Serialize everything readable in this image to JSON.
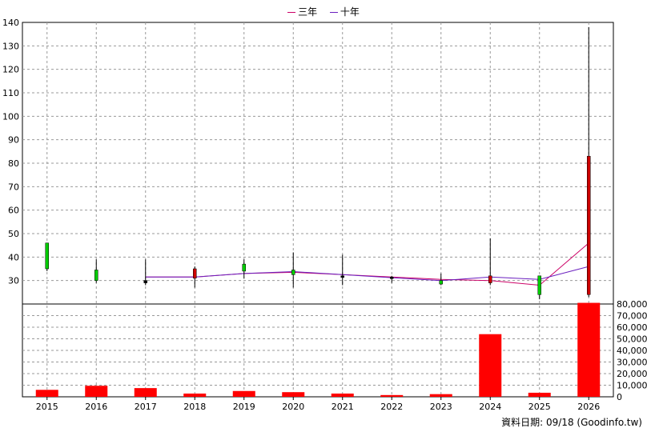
{
  "legend": {
    "items": [
      {
        "label": "三年",
        "color": "#cc0066"
      },
      {
        "label": "十年",
        "color": "#6a1fbf"
      }
    ]
  },
  "footer": {
    "label": "資料日期: 09/18  (Goodinfo.tw)"
  },
  "chart_data": {
    "type": "candlestick+bar",
    "categories": [
      "2015",
      "2016",
      "2017",
      "2018",
      "2019",
      "2020",
      "2021",
      "2022",
      "2023",
      "2024",
      "2025",
      "2026"
    ],
    "price_axis": {
      "ylim": [
        20,
        140
      ],
      "ticks": [
        30,
        40,
        50,
        60,
        70,
        80,
        90,
        100,
        110,
        120,
        130,
        140
      ]
    },
    "volume_axis": {
      "ylim": [
        0,
        80000
      ],
      "ticks": [
        0,
        10000,
        20000,
        30000,
        40000,
        50000,
        60000,
        70000,
        80000
      ],
      "tick_labels": [
        "0",
        "10,000",
        "20,000",
        "30,000",
        "40,000",
        "50,000",
        "60,000",
        "70,000",
        "80,000"
      ]
    },
    "candles": [
      {
        "open": 46,
        "close": 35,
        "high": 46,
        "low": 34,
        "color": "#00cc00"
      },
      {
        "open": 34.5,
        "close": 30,
        "high": 39,
        "low": 29,
        "color": "#00cc00"
      },
      {
        "open": 30,
        "close": 29,
        "high": 39,
        "low": 28,
        "color": "#000000"
      },
      {
        "open": 31,
        "close": 35,
        "high": 36,
        "low": 27,
        "color": "#cc0000"
      },
      {
        "open": 37,
        "close": 34,
        "high": 39,
        "low": 31,
        "color": "#00cc00"
      },
      {
        "open": 34.5,
        "close": 32.5,
        "high": 42,
        "low": 27,
        "color": "#00cc00"
      },
      {
        "open": 32,
        "close": 32,
        "high": 41,
        "low": 28,
        "color": "#000000"
      },
      {
        "open": 31.5,
        "close": 31,
        "high": 32,
        "low": 29,
        "color": "#000000"
      },
      {
        "open": 30,
        "close": 28.5,
        "high": 33,
        "low": 28,
        "color": "#00cc00"
      },
      {
        "open": 29,
        "close": 32,
        "high": 48,
        "low": 28,
        "color": "#cc0000"
      },
      {
        "open": 32,
        "close": 24,
        "high": 32,
        "low": 22,
        "color": "#00cc00"
      },
      {
        "open": 24,
        "close": 83,
        "high": 138,
        "low": 23,
        "color": "#cc0000"
      }
    ],
    "series": [
      {
        "name": "三年",
        "color": "#cc0066",
        "values": [
          null,
          null,
          31.5,
          31.5,
          33,
          33.5,
          32.5,
          31.5,
          30.5,
          30,
          28,
          46
        ]
      },
      {
        "name": "十年",
        "color": "#6a1fbf",
        "values": [
          null,
          null,
          31.5,
          31.5,
          33,
          33.8,
          32.5,
          31.2,
          30,
          31.5,
          30.5,
          36
        ]
      }
    ],
    "volume": [
      6000,
      9500,
      7500,
      2800,
      5000,
      4000,
      2800,
      1500,
      2300,
      54000,
      3500,
      81000
    ],
    "volume_color": "#ff0000",
    "grid": true
  }
}
